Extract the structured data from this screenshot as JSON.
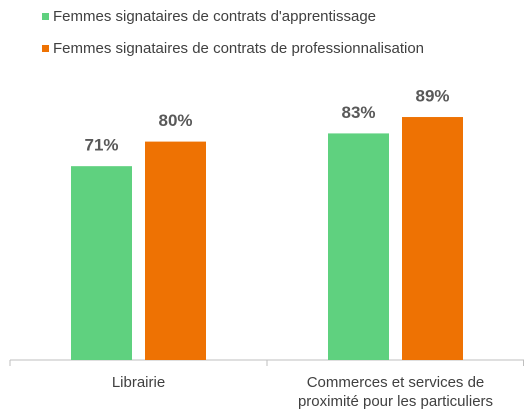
{
  "chart_data": {
    "type": "bar",
    "categories": [
      "Librairie",
      "Commerces et services de proximité pour les particuliers"
    ],
    "series": [
      {
        "name": "Femmes signataires de contrats d'apprentissage",
        "color": "#5fd17f",
        "values": [
          71,
          83
        ],
        "value_labels": [
          "71%",
          "83%"
        ]
      },
      {
        "name": "Femmes signataires de contrats de professionnalisation",
        "color": "#ee7203",
        "values": [
          80,
          89
        ],
        "value_labels": [
          "80%",
          "89%"
        ]
      }
    ],
    "ylim": [
      0,
      100
    ],
    "legend": "top-left"
  }
}
